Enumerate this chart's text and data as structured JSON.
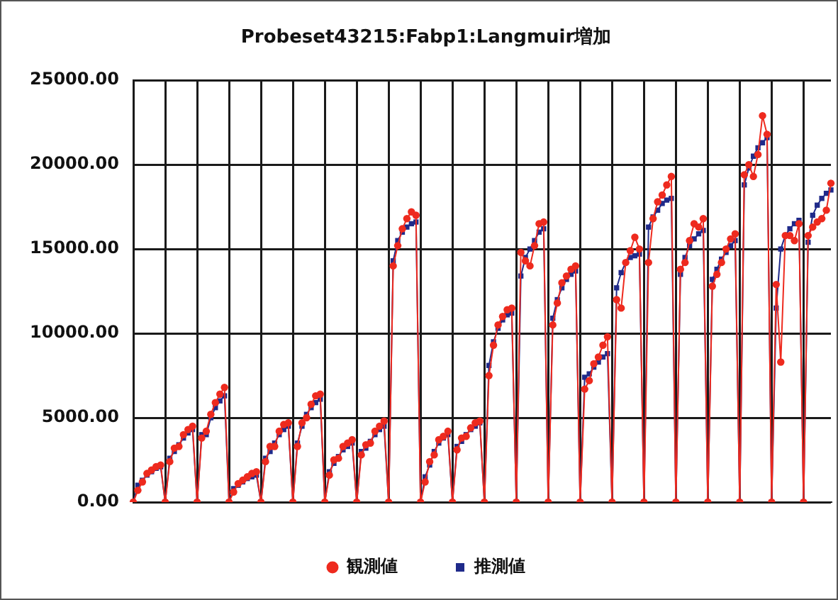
{
  "chart_data": {
    "type": "line",
    "title": "Probeset43215:Fabp1:Langmuir増加",
    "categories": [
      null,
      null,
      null,
      null,
      null,
      null,
      null,
      null,
      null,
      null,
      null,
      null,
      null,
      null,
      null,
      null,
      null,
      null,
      null,
      null,
      null,
      null,
      null,
      null,
      null,
      null,
      null,
      null,
      null,
      null,
      null,
      null,
      null,
      null,
      null,
      null,
      null,
      null,
      null,
      null,
      null,
      null,
      null,
      null,
      null,
      null,
      null,
      null,
      null,
      null,
      null,
      null,
      null,
      null,
      null,
      null,
      null,
      null,
      null,
      null,
      null,
      null,
      null,
      null,
      null,
      null,
      null,
      null,
      null,
      null,
      null,
      null,
      null,
      null,
      null,
      null,
      null,
      null,
      null,
      null,
      null,
      null,
      null,
      null,
      null,
      null,
      null,
      null,
      null,
      null,
      null,
      null,
      null,
      null,
      null,
      null,
      null,
      null,
      null,
      null,
      null,
      null,
      null,
      null,
      null,
      null,
      null,
      null,
      null,
      null,
      null,
      null,
      null,
      null,
      null,
      null,
      null,
      null,
      null,
      null,
      null,
      null,
      null,
      null,
      null,
      null,
      null,
      null,
      null,
      null,
      null,
      null,
      null,
      null,
      null,
      null,
      null,
      null,
      null,
      null,
      null,
      null,
      null,
      null,
      null,
      null,
      null,
      null,
      null,
      null,
      null,
      null,
      null,
      null
    ],
    "series": [
      {
        "name": "観測値",
        "color": "#ee2a1e",
        "marker": "circle",
        "values": [
          0,
          700,
          1200,
          1700,
          1900,
          2100,
          2200,
          0,
          2400,
          3200,
          3300,
          4000,
          4300,
          4500,
          0,
          3800,
          4200,
          5200,
          5900,
          6400,
          6800,
          0,
          600,
          1100,
          1300,
          1500,
          1700,
          1800,
          0,
          2400,
          3300,
          3300,
          4200,
          4600,
          4700,
          0,
          3300,
          4700,
          5000,
          5800,
          6300,
          6400,
          0,
          1600,
          2500,
          2600,
          3300,
          3500,
          3700,
          0,
          2800,
          3400,
          3500,
          4200,
          4500,
          4800,
          0,
          14000,
          15200,
          16200,
          16800,
          17200,
          17000,
          0,
          1200,
          2400,
          2800,
          3700,
          3900,
          4200,
          0,
          3100,
          3800,
          3900,
          4400,
          4700,
          4800,
          0,
          7500,
          9300,
          10500,
          11000,
          11400,
          11500,
          0,
          14800,
          14300,
          14000,
          15200,
          16500,
          16600,
          0,
          10500,
          11800,
          13000,
          13400,
          13800,
          14000,
          0,
          6700,
          7200,
          8200,
          8600,
          9300,
          9800,
          0,
          12000,
          11500,
          14200,
          14900,
          15700,
          15000,
          0,
          14200,
          16800,
          17800,
          18200,
          18800,
          19300,
          0,
          13800,
          14200,
          15500,
          16500,
          16300,
          16800,
          0,
          12800,
          13500,
          14200,
          15000,
          15600,
          15900,
          0,
          19400,
          20000,
          19300,
          20600,
          22900,
          21800,
          0,
          12900,
          8300,
          15800,
          15800,
          15500,
          16500,
          0,
          15800,
          16300,
          16600,
          16800,
          17300,
          18900
        ]
      },
      {
        "name": "推測値",
        "color": "#1f2a8a",
        "marker": "square",
        "values": [
          0,
          1000,
          1300,
          1600,
          1800,
          2000,
          2100,
          0,
          2600,
          3000,
          3400,
          3800,
          4100,
          4300,
          0,
          4000,
          4000,
          5000,
          5600,
          6000,
          6300,
          0,
          800,
          1000,
          1200,
          1400,
          1500,
          1600,
          0,
          2600,
          3000,
          3500,
          4000,
          4300,
          4500,
          0,
          3500,
          4500,
          5200,
          5600,
          5900,
          6100,
          0,
          1800,
          2300,
          2700,
          3100,
          3300,
          3500,
          0,
          3000,
          3200,
          3600,
          4000,
          4300,
          4500,
          0,
          14300,
          15500,
          16000,
          16300,
          16500,
          16600,
          0,
          1500,
          2200,
          3000,
          3500,
          3800,
          4000,
          0,
          3300,
          3600,
          4000,
          4300,
          4500,
          4700,
          0,
          8100,
          9500,
          10300,
          10800,
          11100,
          11200,
          0,
          13400,
          14500,
          15000,
          15500,
          16000,
          16200,
          0,
          10900,
          12000,
          12700,
          13200,
          13500,
          13700,
          0,
          7400,
          7600,
          8000,
          8300,
          8600,
          8800,
          0,
          12700,
          13600,
          14200,
          14500,
          14600,
          14700,
          0,
          16300,
          16900,
          17300,
          17700,
          17900,
          18000,
          0,
          13500,
          14500,
          15200,
          15600,
          15900,
          16100,
          0,
          13200,
          13800,
          14400,
          14800,
          15200,
          15500,
          0,
          18800,
          19800,
          20500,
          21000,
          21300,
          21600,
          0,
          11500,
          15000,
          15800,
          16200,
          16500,
          16700,
          0,
          15400,
          17000,
          17600,
          18000,
          18300,
          18500
        ]
      }
    ],
    "ylim": [
      0,
      25000
    ],
    "yticks": [
      {
        "value": 0,
        "label": "0.00"
      },
      {
        "value": 5000,
        "label": "5000.00"
      },
      {
        "value": 10000,
        "label": "10000.00"
      },
      {
        "value": 15000,
        "label": "15000.00"
      },
      {
        "value": 20000,
        "label": "20000.00"
      },
      {
        "value": 25000,
        "label": "25000.00"
      }
    ],
    "grid": true,
    "legend": "bottom",
    "line_style": "solid"
  }
}
